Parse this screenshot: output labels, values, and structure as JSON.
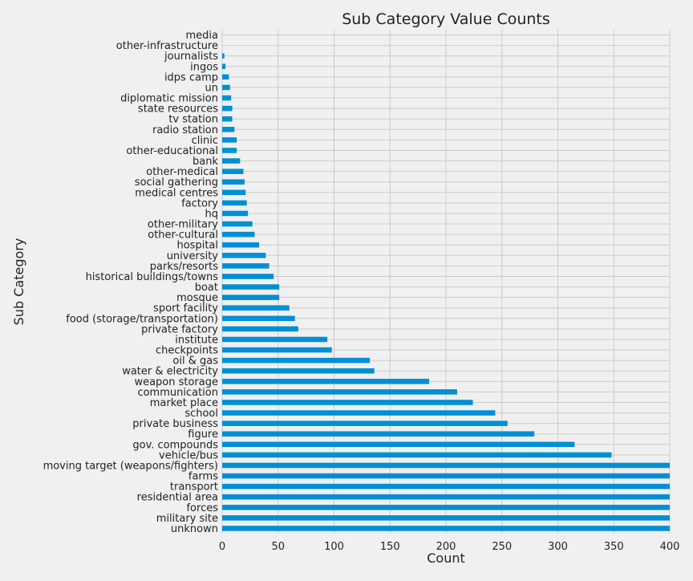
{
  "chart_data": {
    "type": "bar",
    "orientation": "horizontal",
    "title": "Sub Category Value Counts",
    "xlabel": "Count",
    "ylabel": "Sub Category",
    "xlim": [
      0,
      400
    ],
    "xticks": [
      0,
      50,
      100,
      150,
      200,
      250,
      300,
      350,
      400
    ],
    "grid": true,
    "bar_color": "#008fd5",
    "background_color": "#f0f0f0",
    "grid_color": "#cbcbcb",
    "categories": [
      "unknown",
      "military site",
      "forces",
      "residential area",
      "transport",
      "farms",
      "moving target (weapons/fighters)",
      "vehicle/bus",
      "gov. compounds",
      "figure",
      "private business",
      "school",
      "market place",
      "communication",
      "weapon storage",
      "water & electricity",
      "oil & gas",
      "checkpoints",
      "institute",
      "private factory",
      "food (storage/transportation)",
      "sport facility",
      "mosque",
      "boat",
      "historical buildings/towns",
      "parks/resorts",
      "university",
      "hospital",
      "other-cultural",
      "other-military",
      "hq",
      "factory",
      "medical centres",
      "social gathering",
      "other-medical",
      "bank",
      "other-educational",
      "clinic",
      "radio station",
      "tv station",
      "state resources",
      "diplomatic mission",
      "un",
      "idps camp",
      "ingos",
      "journalists",
      "other-infrastructure",
      "media"
    ],
    "values": [
      400,
      400,
      400,
      400,
      400,
      400,
      400,
      348,
      315,
      279,
      255,
      244,
      224,
      210,
      185,
      136,
      132,
      98,
      94,
      68,
      65,
      60,
      51,
      51,
      46,
      42,
      39,
      33,
      29,
      27,
      23,
      22,
      21,
      20,
      19,
      16,
      13,
      13,
      11,
      9,
      9,
      8,
      7,
      6,
      3,
      2,
      0,
      0
    ]
  }
}
